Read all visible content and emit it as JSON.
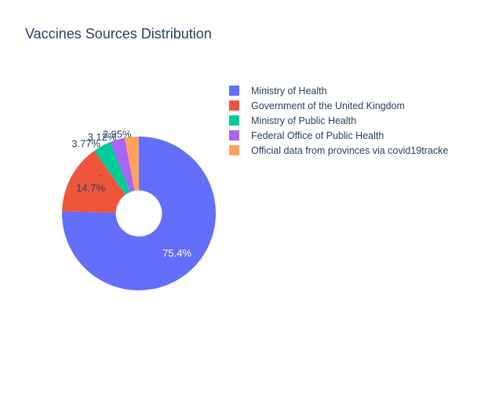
{
  "title": "Vaccines Sources Distribution",
  "chart_data": {
    "type": "pie",
    "hole": 0.3,
    "title": "Vaccines Sources Distribution",
    "categories": [
      "Ministry of Health",
      "Government of the United Kingdom",
      "Ministry of Public Health",
      "Federal Office of Public Health",
      "Official data from provinces via covid19tracke"
    ],
    "values": [
      75.4,
      14.7,
      3.77,
      3.12,
      2.95
    ],
    "labels": [
      "75.4%",
      "14.7%",
      "3.77%",
      "3.12%",
      "2.95%"
    ],
    "colors": [
      "#636efa",
      "#ef553b",
      "#00cc96",
      "#ab63fa",
      "#ffa15a"
    ],
    "label_position": [
      "inside",
      "inside",
      "outside",
      "outside",
      "outside"
    ],
    "legend": {
      "position": "top-right"
    }
  }
}
